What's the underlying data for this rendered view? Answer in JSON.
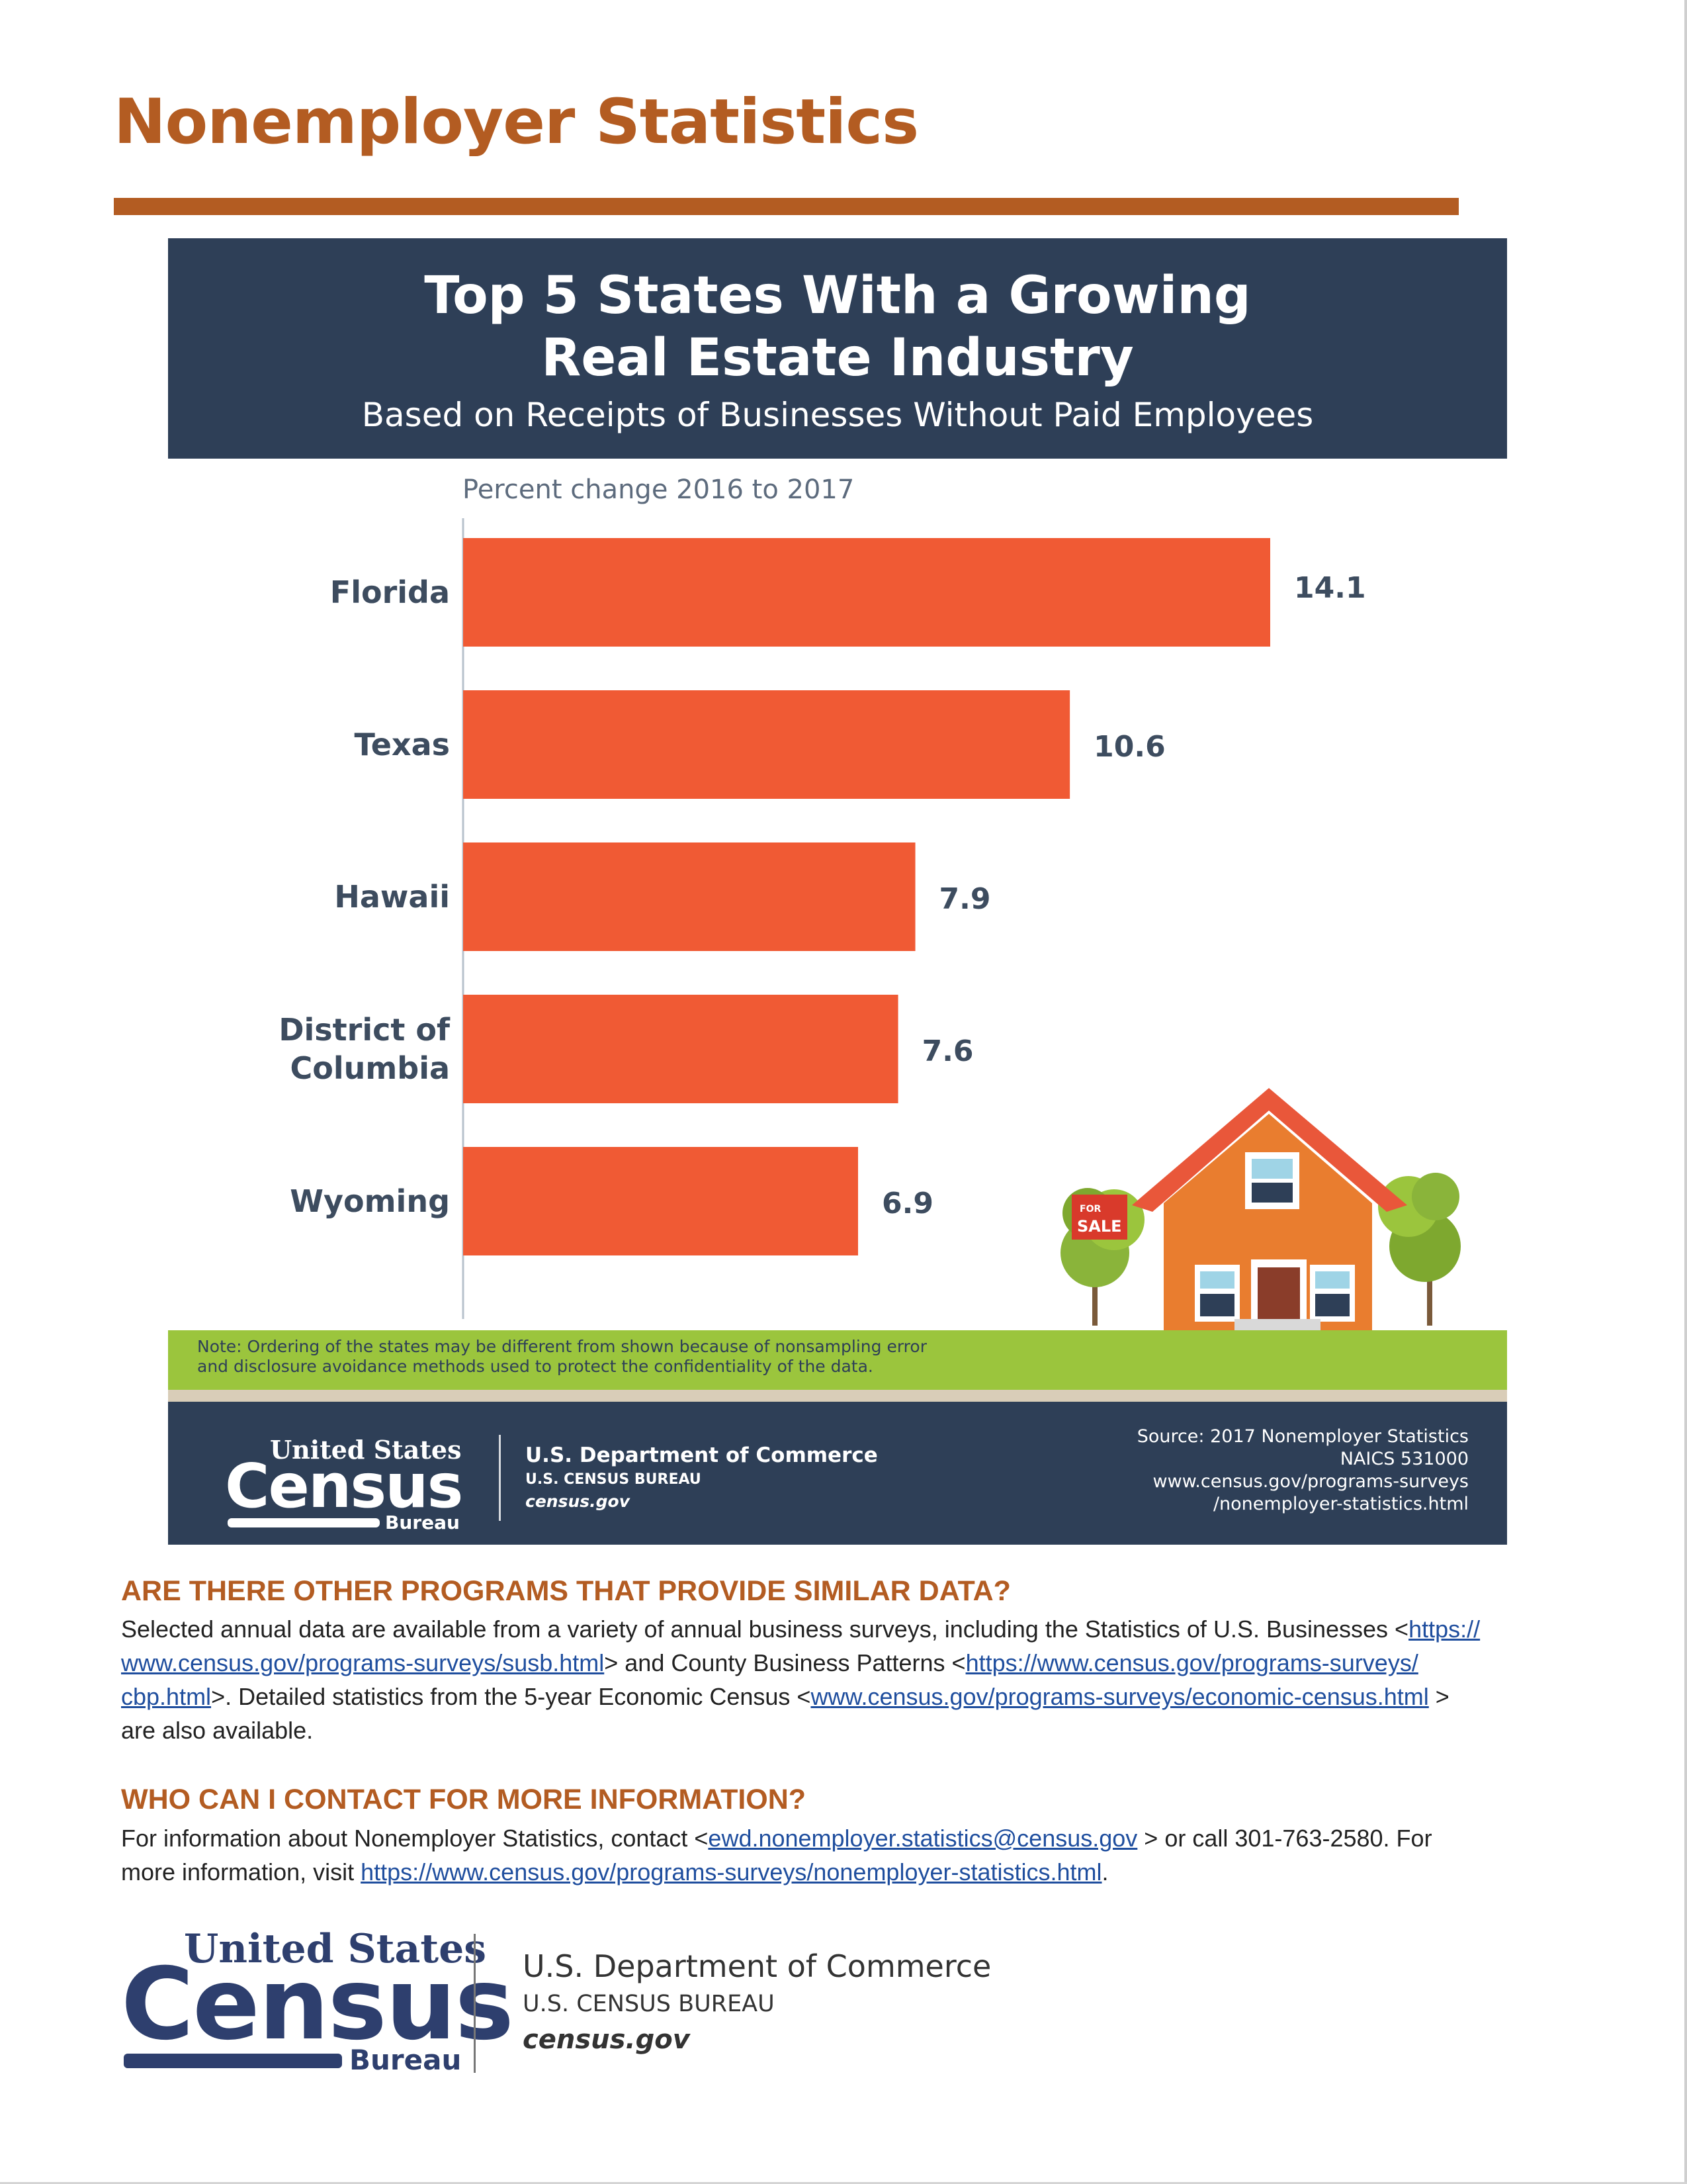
{
  "page": {
    "title": "Nonemployer Statistics",
    "accent_color": "#b35c22"
  },
  "infographic": {
    "title_line1": "Top 5 States With a Growing",
    "title_line2": "Real Estate Industry",
    "subtitle": "Based on Receipts of Businesses Without Paid Employees",
    "note_line1": "Note: Ordering of the states may be different from shown because of nonsampling error",
    "note_line2": "and disclosure avoidance methods used to protect the confidentiality of the data.",
    "sign_label_small": "FOR",
    "sign_label": "SALE",
    "colors": {
      "header_bg": "#2e3f57",
      "bar": "#f05a34",
      "ground": "#9bc53d"
    },
    "footer": {
      "logo_us": "United States",
      "logo_census": "Census",
      "logo_bureau": "Bureau",
      "dept_line1": "U.S. Department of Commerce",
      "dept_line2": "U.S. CENSUS BUREAU",
      "dept_line3": "census.gov",
      "source_line1": "Source: 2017 Nonemployer Statistics",
      "source_line2": "NAICS 531000",
      "source_line3": "www.census.gov/programs-surveys",
      "source_line4": "/nonemployer-statistics.html"
    }
  },
  "chart_data": {
    "type": "bar",
    "orientation": "horizontal",
    "title": "",
    "xlabel": "Percent change 2016 to 2017",
    "categories": [
      "Florida",
      "Texas",
      "Hawaii",
      "District of Columbia",
      "Wyoming"
    ],
    "category_lines": [
      [
        "Florida"
      ],
      [
        "Texas"
      ],
      [
        "Hawaii"
      ],
      [
        "District of",
        "Columbia"
      ],
      [
        "Wyoming"
      ]
    ],
    "values": [
      14.1,
      10.6,
      7.9,
      7.6,
      6.9
    ],
    "value_labels": [
      "14.1",
      "10.6",
      "7.9",
      "7.6",
      "6.9"
    ],
    "xlim": [
      0,
      14.1
    ],
    "grid": false,
    "bar_color": "#f05a34"
  },
  "section1": {
    "heading": "ARE THERE OTHER PROGRAMS THAT PROVIDE SIMILAR DATA?",
    "p1": "Selected annual data are available from a variety of annual business surveys, including the Statistics of U.S. Businesses <",
    "link1_a": "https://",
    "link1_b": "www.census.gov/programs-surveys/susb.html",
    "p2": "> and County Business Patterns <",
    "link2_a": "https://www.census.gov/programs-surveys/",
    "link2_b": "cbp.html",
    "p3": ">. Detailed statistics from the 5-year Economic Census <",
    "link3": "www.census.gov/programs-surveys/economic-census.html",
    "p4": " >",
    "p5": "are also available."
  },
  "section2": {
    "heading": "WHO CAN I CONTACT FOR MORE INFORMATION?",
    "p1": "For information about Nonemployer Statistics, contact  <",
    "email": "ewd.nonemployer.statistics@census.gov",
    "p2": " > or call 301-763-2580. For",
    "p3": "more information, visit ",
    "link": "https://www.census.gov/programs-surveys/nonemployer-statistics.html",
    "p4": "."
  },
  "bottom_logo": {
    "us": "United States",
    "census": "Census",
    "bureau": "Bureau",
    "dept_line1": "U.S. Department of Commerce",
    "dept_line2": "U.S. CENSUS BUREAU",
    "dept_line3": "census.gov"
  }
}
